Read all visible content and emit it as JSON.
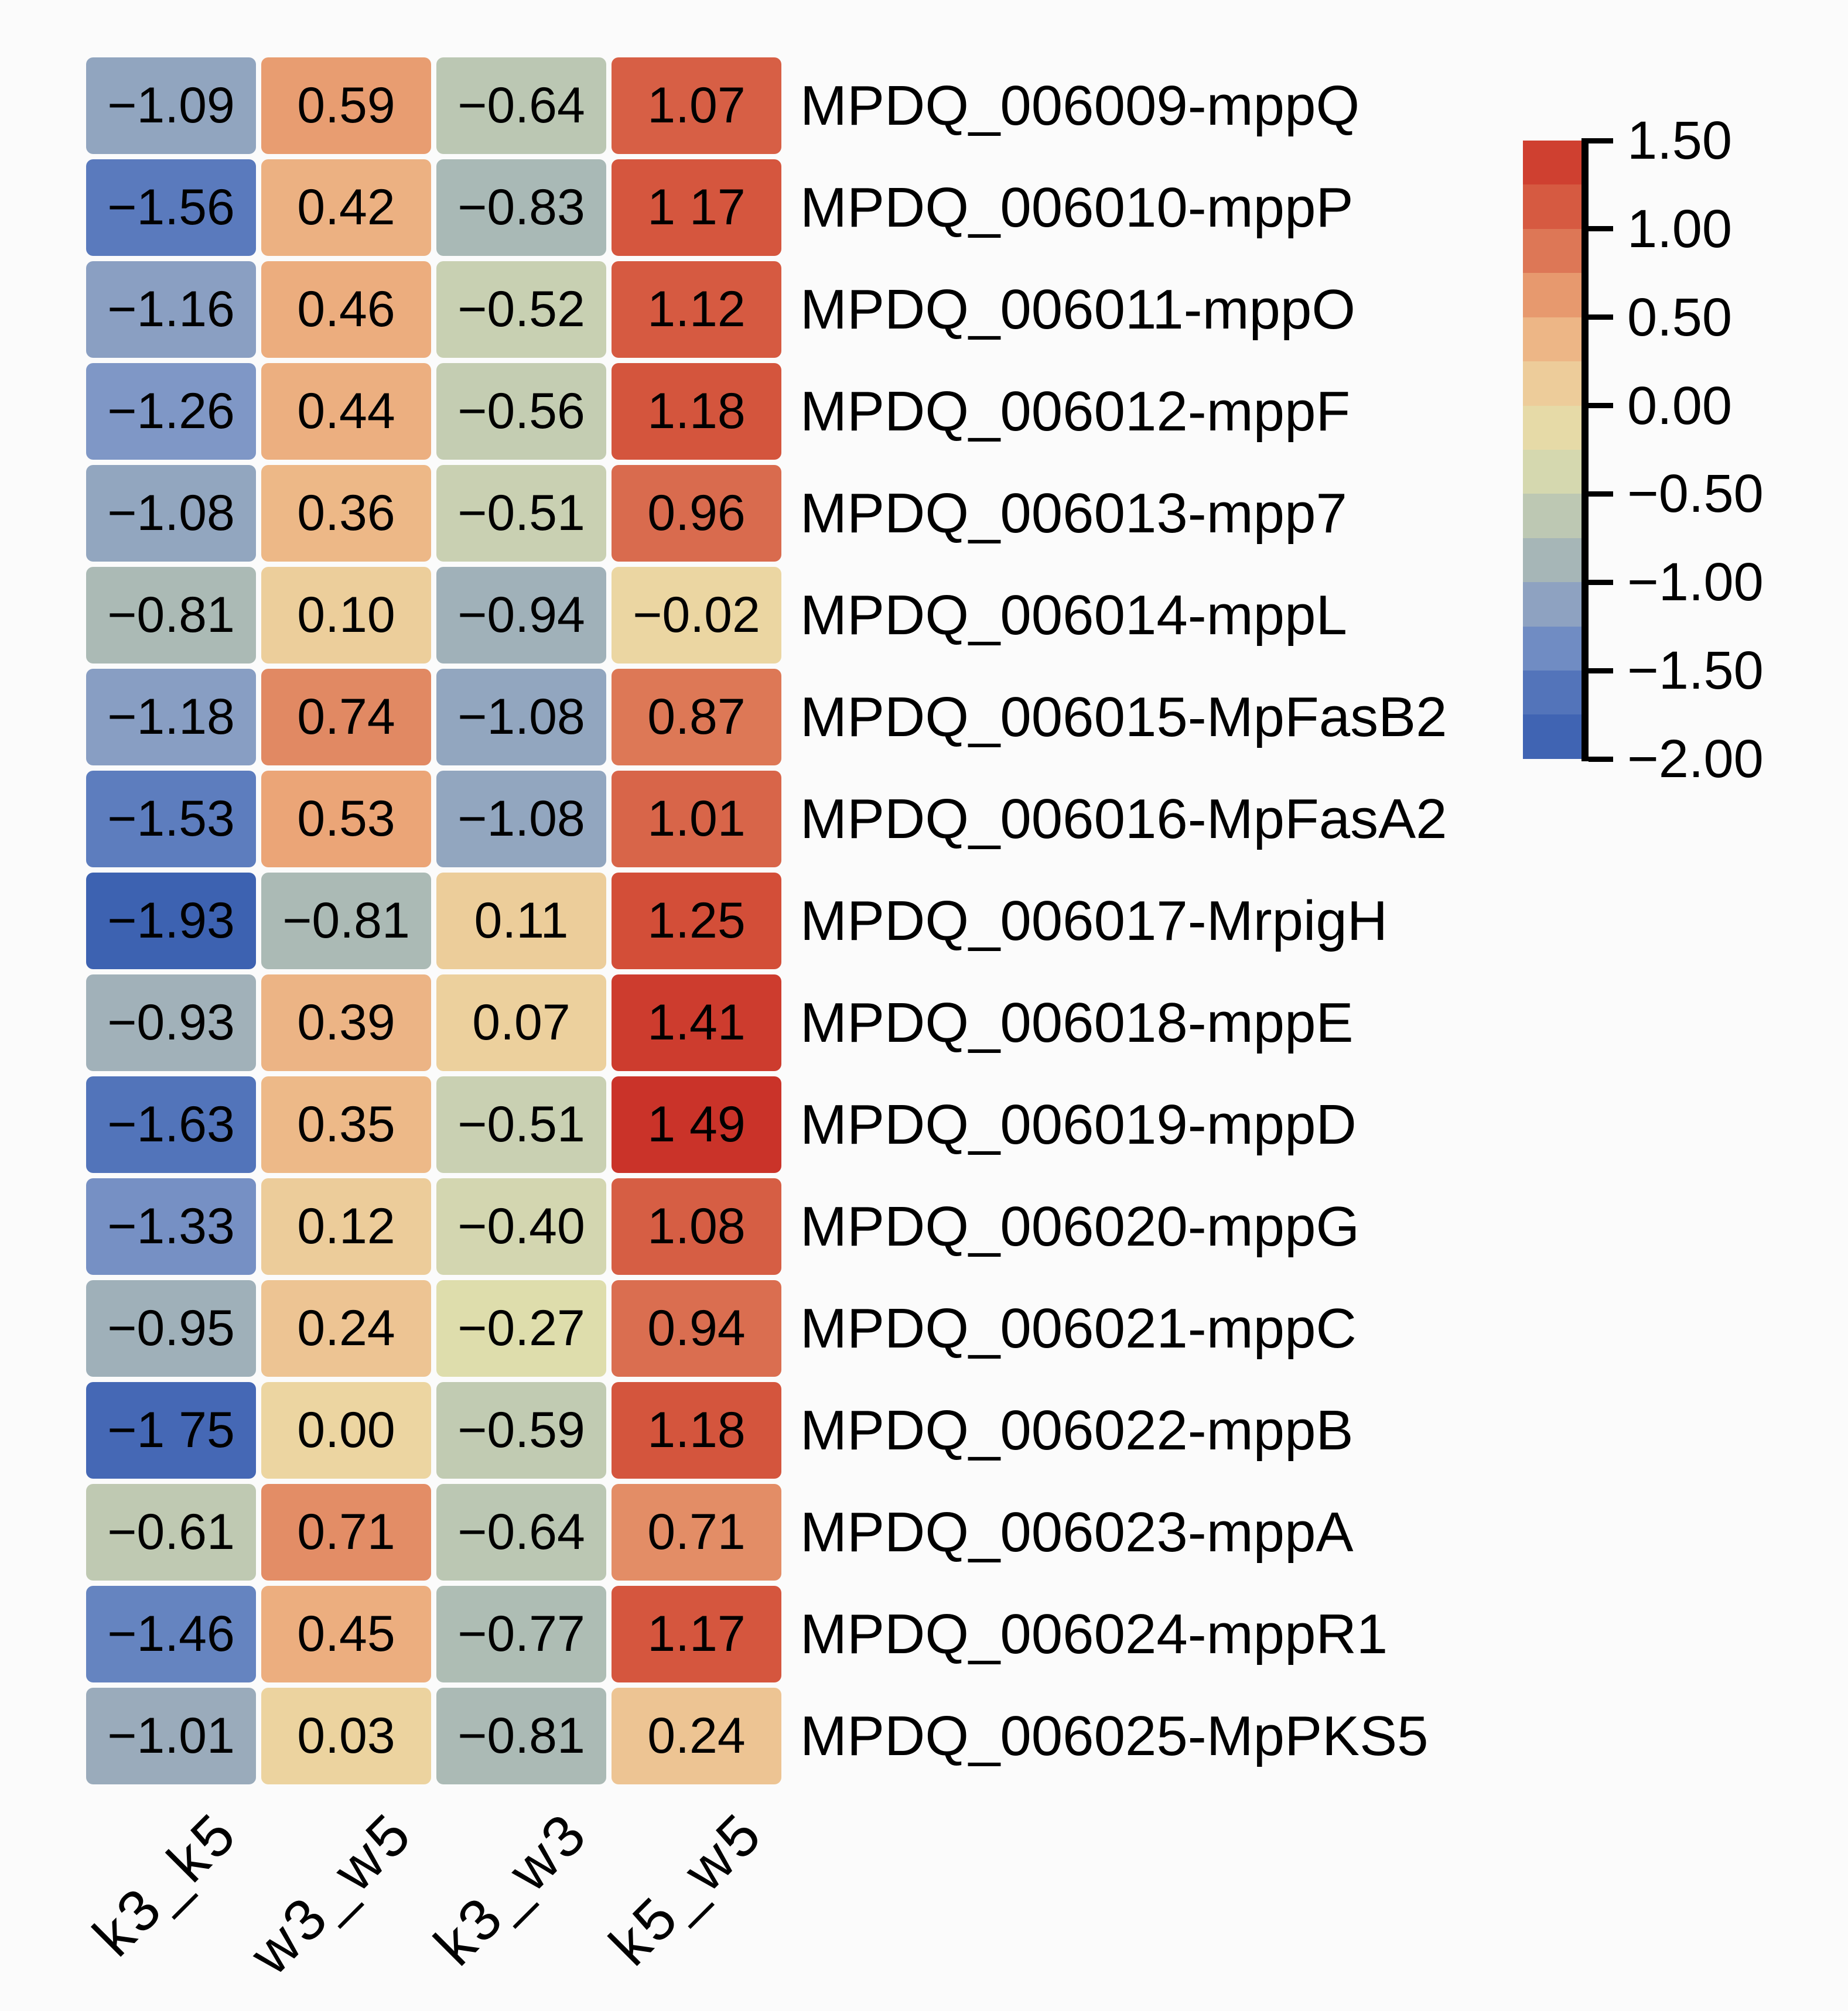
{
  "figure": {
    "background_color": "#fbfbfb",
    "cell_text_color": "#000000",
    "axis_color": "#000000",
    "legend_position": "right"
  },
  "chart_data": {
    "type": "heatmap",
    "title": "",
    "xlabel": "",
    "ylabel": "",
    "x_categories": [
      "k3_k5",
      "w3_w5",
      "k3_w3",
      "k5_w5"
    ],
    "y_categories": [
      "MPDQ_006009-mppQ",
      "MPDQ_006010-mppP",
      "MPDQ_006011-mppO",
      "MPDQ_006012-mppF",
      "MPDQ_006013-mpp7",
      "MPDQ_006014-mppL",
      "MPDQ_006015-MpFasB2",
      "MPDQ_006016-MpFasA2",
      "MPDQ_006017-MrpigH",
      "MPDQ_006018-mppE",
      "MPDQ_006019-mppD",
      "MPDQ_006020-mppG",
      "MPDQ_006021-mppC",
      "MPDQ_006022-mppB",
      "MPDQ_006023-mppA",
      "MPDQ_006024-mppR1",
      "MPDQ_006025-MpPKS5"
    ],
    "values": [
      [
        -1.09,
        0.59,
        -0.64,
        1.07
      ],
      [
        -1.56,
        0.42,
        -0.83,
        1.17
      ],
      [
        -1.16,
        0.46,
        -0.52,
        1.12
      ],
      [
        -1.26,
        0.44,
        -0.56,
        1.18
      ],
      [
        -1.08,
        0.36,
        -0.51,
        0.96
      ],
      [
        -0.81,
        0.1,
        -0.94,
        -0.02
      ],
      [
        -1.18,
        0.74,
        -1.08,
        0.87
      ],
      [
        -1.53,
        0.53,
        -1.08,
        1.01
      ],
      [
        -1.93,
        -0.81,
        0.11,
        1.25
      ],
      [
        -0.93,
        0.39,
        0.07,
        1.41
      ],
      [
        -1.63,
        0.35,
        -0.51,
        1.49
      ],
      [
        -1.33,
        0.12,
        -0.4,
        1.08
      ],
      [
        -0.95,
        0.24,
        -0.27,
        0.94
      ],
      [
        -1.75,
        0.0,
        -0.59,
        1.18
      ],
      [
        -0.61,
        0.71,
        -0.64,
        0.71
      ],
      [
        -1.46,
        0.45,
        -0.77,
        1.17
      ],
      [
        -1.01,
        0.03,
        -0.81,
        0.24
      ]
    ],
    "cell_display": [
      [
        "−1.09",
        "0.59",
        "−0.64",
        "1.07"
      ],
      [
        "−1.56",
        "0.42",
        "−0.83",
        "1 17"
      ],
      [
        "−1.16",
        "0.46",
        "−0.52",
        "1.12"
      ],
      [
        "−1.26",
        "0.44",
        "−0.56",
        "1.18"
      ],
      [
        "−1.08",
        "0.36",
        "−0.51",
        "0.96"
      ],
      [
        "−0.81",
        "0.10",
        "−0.94",
        "−0.02"
      ],
      [
        "−1.18",
        "0.74",
        "−1.08",
        "0.87"
      ],
      [
        "−1.53",
        "0.53",
        "−1.08",
        "1.01"
      ],
      [
        "−1.93",
        "−0.81",
        "0.11",
        "1.25"
      ],
      [
        "−0.93",
        "0.39",
        "0.07",
        "1.41"
      ],
      [
        "−1.63",
        "0.35",
        "−0.51",
        "1 49"
      ],
      [
        "−1.33",
        "0.12",
        "−0.40",
        "1.08"
      ],
      [
        "−0.95",
        "0.24",
        "−0.27",
        "0.94"
      ],
      [
        "−1 75",
        "0.00",
        "−0.59",
        "1.18"
      ],
      [
        "−0.61",
        "0.71",
        "−0.64",
        "0.71"
      ],
      [
        "−1.46",
        "0.45",
        "−0.77",
        "1.17"
      ],
      [
        "−1.01",
        "0.03",
        "−0.81",
        "0.24"
      ]
    ],
    "vmin": -2.0,
    "vmax": 1.5,
    "legend_band_step": 0.25,
    "legend_tick_values": [
      1.5,
      1.0,
      0.5,
      0.0,
      -0.5,
      -1.0,
      -1.5,
      -2.0
    ],
    "legend_tick_labels": [
      "1.50",
      "1.00",
      "0.50",
      "0.00",
      "−0.50",
      "−1.00",
      "−1.50",
      "−2.00"
    ],
    "legend_position": "right",
    "colormap_stops": [
      {
        "v": -2.0,
        "c": "#3A5FB0"
      },
      {
        "v": -1.75,
        "c": "#4568B5"
      },
      {
        "v": -1.5,
        "c": "#6080BF"
      },
      {
        "v": -1.25,
        "c": "#8098C6"
      },
      {
        "v": -1.0,
        "c": "#9BACBB"
      },
      {
        "v": -0.75,
        "c": "#B0BFB3"
      },
      {
        "v": -0.5,
        "c": "#CAD1B2"
      },
      {
        "v": -0.25,
        "c": "#E0DEAC"
      },
      {
        "v": 0.0,
        "c": "#ECD5A1"
      },
      {
        "v": 0.25,
        "c": "#EDC392"
      },
      {
        "v": 0.5,
        "c": "#ECA97A"
      },
      {
        "v": 0.75,
        "c": "#E18862"
      },
      {
        "v": 1.0,
        "c": "#D8664A"
      },
      {
        "v": 1.25,
        "c": "#D34E38"
      },
      {
        "v": 1.5,
        "c": "#CA3228"
      }
    ]
  }
}
